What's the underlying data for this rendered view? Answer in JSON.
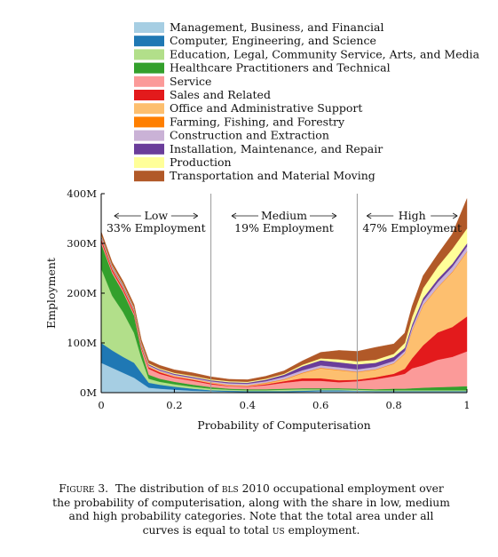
{
  "chart_data": {
    "type": "area",
    "stacked": true,
    "xlabel": "Probability of Computerisation",
    "ylabel": "Employment",
    "xlim": [
      0,
      1
    ],
    "ylim": [
      0,
      400
    ],
    "x_ticks": [
      "0",
      "0.2",
      "0.4",
      "0.6",
      "0.8",
      "1"
    ],
    "y_ticks": [
      "0M",
      "100M",
      "200M",
      "300M",
      "400M"
    ],
    "legend_position": "top",
    "regions": [
      {
        "title": "Low",
        "share": "33% Employment",
        "range": [
          0,
          0.3
        ]
      },
      {
        "title": "Medium",
        "share": "19% Employment",
        "range": [
          0.3,
          0.7
        ]
      },
      {
        "title": "High",
        "share": "47% Employment",
        "range": [
          0.7,
          1
        ]
      }
    ],
    "x": [
      0,
      0.03,
      0.06,
      0.09,
      0.11,
      0.13,
      0.16,
      0.2,
      0.25,
      0.3,
      0.35,
      0.4,
      0.45,
      0.5,
      0.55,
      0.6,
      0.65,
      0.7,
      0.75,
      0.8,
      0.83,
      0.85,
      0.88,
      0.92,
      0.96,
      1.0
    ],
    "series": [
      {
        "name": "Management, Business, and Financial",
        "color": "#a6cee3",
        "values": [
          60,
          50,
          40,
          30,
          20,
          10,
          8,
          6,
          4,
          3,
          2,
          1,
          1,
          1,
          2,
          3,
          3,
          3,
          2,
          2,
          2,
          2,
          2,
          2,
          2,
          2
        ]
      },
      {
        "name": "Computer, Engineering, and Science",
        "color": "#1f78b4",
        "values": [
          40,
          35,
          32,
          30,
          20,
          10,
          8,
          6,
          4,
          2,
          2,
          2,
          2,
          2,
          2,
          2,
          2,
          1,
          1,
          1,
          1,
          1,
          1,
          1,
          1,
          1
        ]
      },
      {
        "name": "Education, Legal, Community Service, Arts, and Media",
        "color": "#b2df8a",
        "values": [
          150,
          110,
          90,
          60,
          30,
          8,
          6,
          5,
          4,
          3,
          2,
          2,
          2,
          3,
          3,
          2,
          2,
          2,
          2,
          2,
          2,
          2,
          2,
          2,
          2,
          2
        ]
      },
      {
        "name": "Healthcare Practitioners and Technical",
        "color": "#33a02c",
        "values": [
          50,
          45,
          40,
          35,
          15,
          8,
          6,
          5,
          4,
          3,
          2,
          2,
          2,
          2,
          2,
          2,
          2,
          2,
          2,
          3,
          3,
          4,
          5,
          6,
          7,
          8
        ]
      },
      {
        "name": "Service",
        "color": "#fb9a99",
        "values": [
          5,
          4,
          4,
          4,
          4,
          12,
          10,
          8,
          8,
          6,
          5,
          5,
          8,
          12,
          15,
          15,
          12,
          15,
          20,
          25,
          30,
          40,
          45,
          55,
          60,
          70
        ]
      },
      {
        "name": "Sales and Related",
        "color": "#e31a1c",
        "values": [
          5,
          4,
          4,
          4,
          3,
          3,
          3,
          2,
          2,
          2,
          1,
          1,
          2,
          3,
          5,
          5,
          4,
          3,
          4,
          5,
          10,
          20,
          40,
          55,
          60,
          70
        ]
      },
      {
        "name": "Office and Administrative Support",
        "color": "#fdbf6f",
        "values": [
          2,
          2,
          2,
          2,
          2,
          2,
          2,
          2,
          2,
          2,
          2,
          2,
          2,
          3,
          10,
          20,
          20,
          15,
          15,
          20,
          30,
          55,
          80,
          90,
          110,
          130
        ]
      },
      {
        "name": "Farming, Fishing, and Forestry",
        "color": "#ff7f00",
        "values": [
          0,
          0,
          0,
          0,
          0,
          0,
          0,
          0,
          0,
          0,
          0,
          0,
          1,
          1,
          1,
          1,
          1,
          1,
          1,
          1,
          1,
          1,
          1,
          1,
          1,
          1
        ]
      },
      {
        "name": "Construction and Extraction",
        "color": "#cab2d6",
        "values": [
          2,
          2,
          2,
          2,
          2,
          2,
          2,
          2,
          2,
          2,
          3,
          3,
          3,
          5,
          5,
          5,
          5,
          5,
          5,
          5,
          5,
          6,
          8,
          10,
          10,
          10
        ]
      },
      {
        "name": "Installation, Maintenance, and Repair",
        "color": "#6a3d9a",
        "values": [
          2,
          2,
          2,
          2,
          2,
          2,
          2,
          2,
          2,
          2,
          2,
          2,
          3,
          4,
          8,
          10,
          10,
          10,
          8,
          8,
          6,
          6,
          6,
          6,
          6,
          6
        ]
      },
      {
        "name": "Production",
        "color": "#ffff99",
        "values": [
          2,
          2,
          2,
          2,
          2,
          2,
          2,
          2,
          2,
          2,
          2,
          2,
          2,
          2,
          3,
          4,
          6,
          6,
          6,
          6,
          10,
          15,
          20,
          25,
          30,
          30
        ]
      },
      {
        "name": "Transportation and Material Moving",
        "color": "#b15928",
        "values": [
          6,
          6,
          6,
          6,
          6,
          6,
          6,
          6,
          6,
          5,
          4,
          4,
          5,
          6,
          8,
          12,
          18,
          20,
          25,
          20,
          20,
          22,
          25,
          25,
          30,
          60
        ]
      }
    ]
  },
  "caption": {
    "label": "Figure 3.",
    "text_1": "The distribution of",
    "abbr_1": "bls",
    "text_2": "2010 occupational employment over the probability of computerisation, along with the share in low, medium and high probability categories. Note that the total area under all curves is equal to total",
    "abbr_2": "us",
    "text_3": "employment."
  }
}
